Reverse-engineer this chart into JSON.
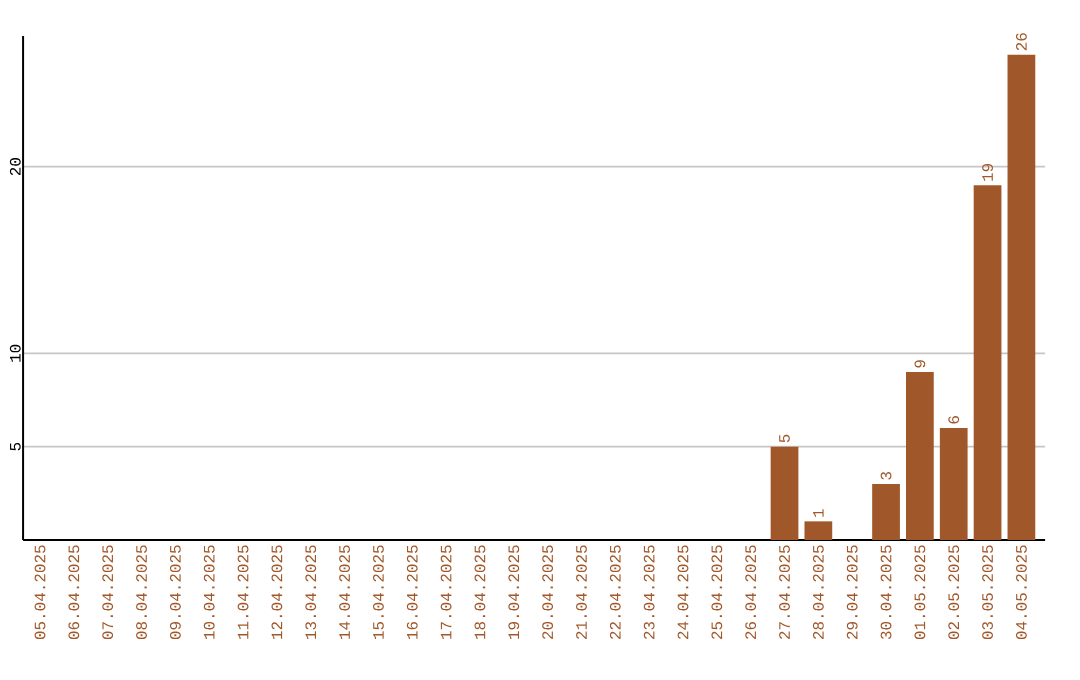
{
  "chart_data": {
    "type": "bar",
    "categories": [
      "05.04.2025",
      "06.04.2025",
      "07.04.2025",
      "08.04.2025",
      "09.04.2025",
      "10.04.2025",
      "11.04.2025",
      "12.04.2025",
      "13.04.2025",
      "14.04.2025",
      "15.04.2025",
      "16.04.2025",
      "17.04.2025",
      "18.04.2025",
      "19.04.2025",
      "20.04.2025",
      "21.04.2025",
      "22.04.2025",
      "23.04.2025",
      "24.04.2025",
      "25.04.2025",
      "26.04.2025",
      "27.04.2025",
      "28.04.2025",
      "29.04.2025",
      "30.04.2025",
      "01.05.2025",
      "02.05.2025",
      "03.05.2025",
      "04.05.2025"
    ],
    "values": [
      0,
      0,
      0,
      0,
      0,
      0,
      0,
      0,
      0,
      0,
      0,
      0,
      0,
      0,
      0,
      0,
      0,
      0,
      0,
      0,
      0,
      0,
      5,
      1,
      0,
      3,
      9,
      6,
      19,
      26
    ],
    "value_labels": [
      null,
      null,
      null,
      null,
      null,
      null,
      null,
      null,
      null,
      null,
      null,
      null,
      null,
      null,
      null,
      null,
      null,
      null,
      null,
      null,
      null,
      null,
      "5",
      "1",
      null,
      "3",
      "9",
      "6",
      "19",
      "26"
    ],
    "color": "#a0582a",
    "ylim": [
      0,
      27
    ],
    "yticks": [
      5,
      10,
      20
    ],
    "grid": "y"
  }
}
